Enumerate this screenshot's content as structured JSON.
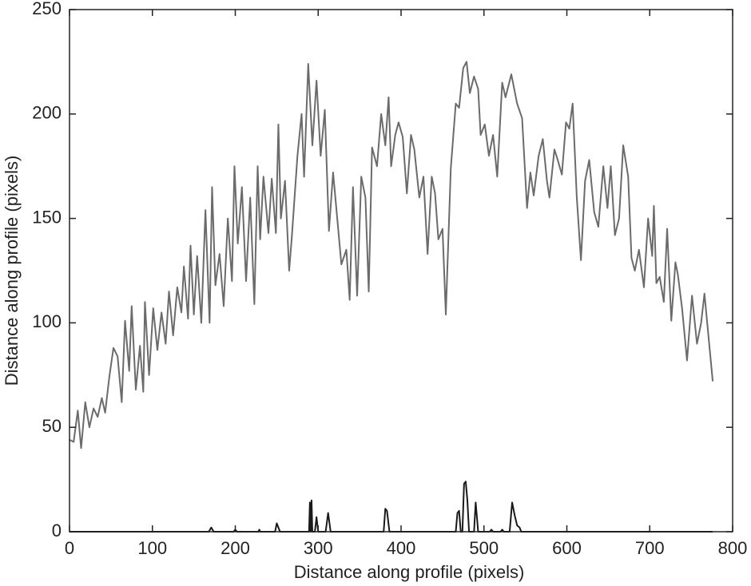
{
  "chart_data": {
    "type": "line",
    "xlabel": "Distance along profile (pixels)",
    "ylabel": "Distance along profile (pixels)",
    "xlim": [
      0,
      800
    ],
    "xticks": [
      0,
      100,
      200,
      300,
      400,
      500,
      600,
      700,
      800
    ],
    "ylim": [
      0,
      250
    ],
    "yticks": [
      0,
      50,
      100,
      150,
      200,
      250
    ],
    "grid": false,
    "series": [
      {
        "color": "#6b6b6b",
        "x": [
          0,
          5,
          10,
          14,
          19,
          24,
          29,
          34,
          39,
          43,
          48,
          53,
          58,
          63,
          67,
          72,
          75,
          80,
          85,
          89,
          91,
          96,
          101,
          106,
          111,
          116,
          120,
          125,
          130,
          135,
          138,
          143,
          146,
          150,
          154,
          159,
          164,
          169,
          172,
          176,
          181,
          186,
          191,
          196,
          199,
          203,
          208,
          213,
          218,
          223,
          227,
          230,
          234,
          240,
          244,
          249,
          252,
          255,
          260,
          265,
          268,
          275,
          280,
          283,
          288,
          293,
          298,
          303,
          308,
          313,
          318,
          323,
          328,
          334,
          338,
          342,
          347,
          352,
          357,
          361,
          365,
          371,
          376,
          381,
          385,
          388,
          393,
          397,
          402,
          407,
          412,
          416,
          422,
          427,
          432,
          437,
          441,
          445,
          450,
          454,
          460,
          466,
          470,
          475,
          479,
          483,
          488,
          493,
          496,
          501,
          506,
          511,
          516,
          522,
          526,
          533,
          540,
          546,
          552,
          556,
          560,
          566,
          571,
          576,
          579,
          585,
          589,
          594,
          599,
          603,
          607,
          612,
          617,
          622,
          627,
          633,
          638,
          644,
          649,
          653,
          658,
          663,
          668,
          674,
          678,
          682,
          687,
          693,
          698,
          703,
          705,
          708,
          712,
          717,
          721,
          726,
          731,
          734,
          739,
          745,
          751,
          757,
          762,
          766,
          776
        ],
        "values": [
          44,
          43,
          58,
          40,
          62,
          50,
          59,
          55,
          64,
          57,
          74,
          88,
          84,
          62,
          101,
          77,
          108,
          68,
          89,
          67,
          110,
          75,
          107,
          87,
          105,
          90,
          115,
          94,
          117,
          105,
          127,
          102,
          137,
          104,
          132,
          100,
          154,
          100,
          165,
          118,
          133,
          108,
          150,
          120,
          175,
          138,
          165,
          120,
          160,
          109,
          175,
          140,
          170,
          143,
          169,
          143,
          195,
          150,
          168,
          125,
          140,
          180,
          200,
          170,
          224,
          185,
          216,
          180,
          202,
          144,
          172,
          150,
          128,
          135,
          111,
          165,
          113,
          170,
          160,
          115,
          184,
          175,
          200,
          185,
          208,
          175,
          190,
          196,
          189,
          162,
          190,
          183,
          160,
          170,
          133,
          170,
          162,
          140,
          145,
          104,
          174,
          205,
          203,
          222,
          225,
          210,
          218,
          212,
          190,
          195,
          180,
          190,
          170,
          215,
          208,
          219,
          205,
          198,
          155,
          172,
          161,
          180,
          188,
          168,
          160,
          183,
          178,
          171,
          196,
          193,
          205,
          160,
          130,
          168,
          178,
          153,
          146,
          175,
          155,
          175,
          142,
          150,
          185,
          170,
          131,
          125,
          135,
          117,
          150,
          132,
          156,
          119,
          122,
          110,
          145,
          101,
          129,
          123,
          107,
          82,
          113,
          90,
          100,
          114,
          72
        ]
      },
      {
        "color": "#1a1a1a",
        "x": [
          0,
          168,
          171,
          174,
          198,
          200,
          202,
          228,
          229,
          230,
          248,
          250,
          254,
          289,
          290,
          291,
          292,
          293,
          296,
          298,
          300,
          309,
          312,
          315,
          379,
          381,
          383,
          386,
          466,
          468,
          470,
          472,
          474,
          476,
          478,
          480,
          482,
          488,
          490,
          493,
          507,
          509,
          511,
          520,
          522,
          524,
          531,
          534,
          537,
          540,
          543,
          545,
          776
        ],
        "values": [
          0,
          0,
          2,
          0,
          0,
          1,
          0,
          0,
          1,
          0,
          0,
          4,
          0,
          0,
          14,
          0,
          15,
          0,
          0,
          7,
          0,
          0,
          9,
          0,
          0,
          11,
          10,
          0,
          0,
          9,
          10,
          0,
          0,
          23,
          24,
          15,
          0,
          0,
          14,
          0,
          0,
          1,
          0,
          0,
          1,
          0,
          0,
          14,
          8,
          3,
          2,
          0,
          0
        ]
      }
    ]
  }
}
